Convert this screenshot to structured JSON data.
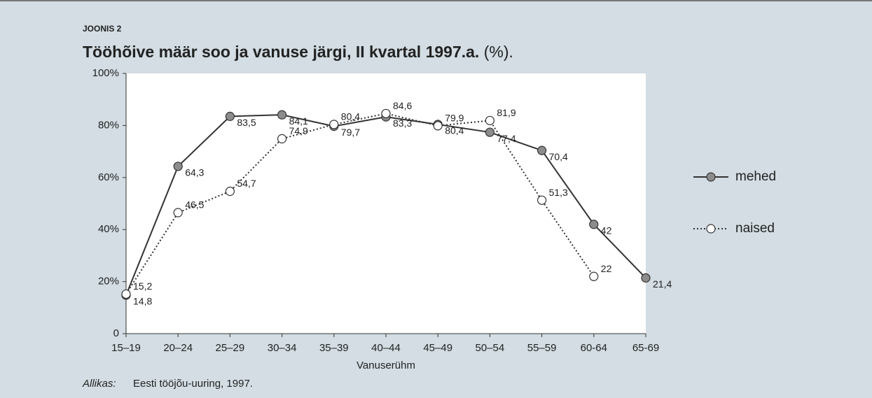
{
  "chart_data": {
    "type": "line",
    "figure_label": "JOONIS 2",
    "title": "Tööhõive määr soo ja vanuse järgi, II kvartal 1997.a.",
    "title_unit": "(%).",
    "x_label": "Vanuserühm",
    "source_label": "Allikas:",
    "source": "Eesti tööjõu-uuring, 1997.",
    "categories": [
      "15–19",
      "20–24",
      "25–29",
      "30–34",
      "35–39",
      "40–44",
      "45–49",
      "50–54",
      "55–59",
      "60-64",
      "65-69"
    ],
    "series": [
      {
        "name": "mehed",
        "color": "#333333",
        "marker_fill": "#8c8c8c",
        "dash": "solid",
        "values": [
          14.8,
          64.3,
          83.5,
          84.1,
          79.7,
          83.3,
          80.4,
          77.4,
          70.4,
          42,
          21.4
        ],
        "value_labels": [
          "14,8",
          "64,3",
          "83,5",
          "84,1",
          "79,7",
          "83,3",
          "80,4",
          "77,4",
          "70,4",
          "42",
          "21,4"
        ]
      },
      {
        "name": "naised",
        "color": "#333333",
        "marker_fill": "#ffffff",
        "dash": "dotted",
        "values": [
          15.2,
          46.5,
          54.7,
          74.9,
          80.4,
          84.6,
          79.9,
          81.9,
          51.3,
          22,
          null
        ],
        "value_labels": [
          "15,2",
          "46,5",
          "54,7",
          "74,9",
          "80,4",
          "84,6",
          "79,9",
          "81,9",
          "51,3",
          "22",
          null
        ]
      }
    ],
    "ylim": [
      0,
      100
    ],
    "yticks": [
      0,
      {
        "value": 20,
        "label": "20%"
      },
      {
        "value": 40,
        "label": "40%"
      },
      {
        "value": 60,
        "label": "60%"
      },
      {
        "value": 80,
        "label": "80%"
      },
      {
        "value": 100,
        "label": "100%"
      }
    ],
    "legend": "right"
  }
}
